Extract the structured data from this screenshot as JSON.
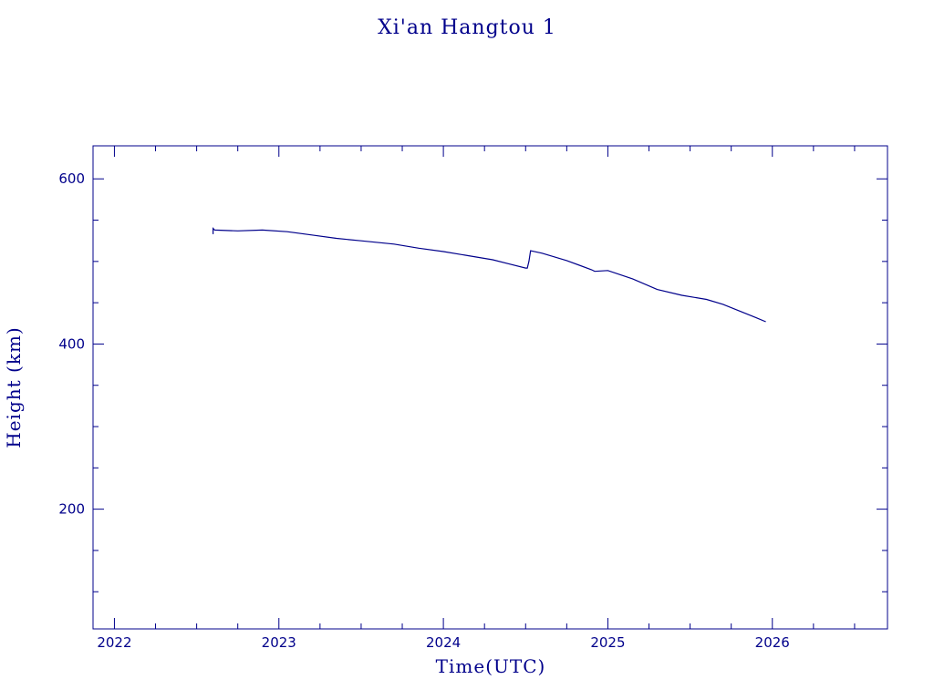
{
  "chart_data": {
    "type": "line",
    "title": "Xi'an Hangtou 1",
    "xlabel": "Time(UTC)",
    "ylabel": "Height (km)",
    "xlim": [
      2021.87,
      2026.7
    ],
    "ylim": [
      55,
      640
    ],
    "x_ticks": [
      2022,
      2023,
      2024,
      2025,
      2026
    ],
    "x_minor_ticks": [
      2022.25,
      2022.5,
      2022.75,
      2023.25,
      2023.5,
      2023.75,
      2024.25,
      2024.5,
      2024.75,
      2025.25,
      2025.5,
      2025.75,
      2026.25,
      2026.5
    ],
    "y_ticks": [
      200,
      400,
      600
    ],
    "y_minor_ticks": [
      100,
      150,
      250,
      300,
      350,
      450,
      500,
      550
    ],
    "grid": false,
    "series": [
      {
        "color": "#00008b",
        "x": [
          2022.6,
          2022.6,
          2022.61,
          2022.75,
          2022.9,
          2023.05,
          2023.2,
          2023.35,
          2023.5,
          2023.7,
          2023.85,
          2024.0,
          2024.15,
          2024.3,
          2024.4,
          2024.5,
          2024.51,
          2024.52,
          2024.53,
          2024.6,
          2024.75,
          2024.9,
          2024.92,
          2025.0,
          2025.15,
          2025.3,
          2025.45,
          2025.6,
          2025.7,
          2025.8,
          2025.9,
          2025.96
        ],
        "y": [
          533,
          540,
          538,
          537,
          538,
          536,
          532,
          528,
          525,
          521,
          516,
          512,
          507,
          502,
          497,
          492,
          492,
          500,
          513,
          510,
          501,
          490,
          488,
          489,
          479,
          466,
          459,
          454,
          448,
          440,
          432,
          427
        ]
      }
    ]
  }
}
